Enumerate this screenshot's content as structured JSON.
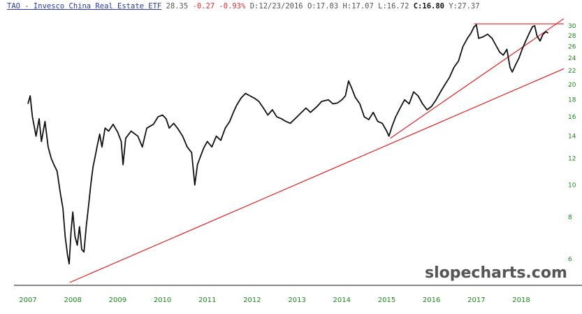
{
  "header": {
    "title": "TAO - Invesco China Real Estate ETF",
    "price": "28.35",
    "change": "-0.27",
    "change_pct": "-0.93%",
    "date_label": "D:",
    "date": "12/23/2016",
    "open_label": "O:",
    "open": "17.03",
    "high_label": "H:",
    "high": "17.07",
    "low_label": "L:",
    "low": "16.72",
    "close_label": "C:",
    "close": "16.80",
    "y_label": "Y:",
    "y_value": "27.37"
  },
  "watermark": "slopecharts.com",
  "colors": {
    "price_line": "#111111",
    "trendline": "#e02020",
    "axis_text": "#1a8a1a",
    "title": "#2a3aa8",
    "negative": "#e03030"
  },
  "chart_data": {
    "type": "line",
    "scale": "log",
    "ylim": [
      5.1,
      31
    ],
    "yticks": [
      6,
      8,
      10,
      12,
      14,
      16,
      18,
      20,
      22,
      24,
      26,
      28,
      30
    ],
    "xlim": [
      2007.0,
      2018.95
    ],
    "xticks": [
      "2007",
      "2008",
      "2009",
      "2010",
      "2011",
      "2012",
      "2013",
      "2014",
      "2015",
      "2016",
      "2017",
      "2018"
    ],
    "grid": false,
    "series": [
      {
        "values": [
          [
            2007.0,
            17.5
          ],
          [
            2007.05,
            18.5
          ],
          [
            2007.1,
            16.0
          ],
          [
            2007.18,
            14.0
          ],
          [
            2007.25,
            15.8
          ],
          [
            2007.3,
            13.5
          ],
          [
            2007.38,
            15.5
          ],
          [
            2007.45,
            13.0
          ],
          [
            2007.52,
            12.0
          ],
          [
            2007.58,
            11.5
          ],
          [
            2007.65,
            11.0
          ],
          [
            2007.72,
            9.5
          ],
          [
            2007.78,
            8.5
          ],
          [
            2007.83,
            7.0
          ],
          [
            2007.88,
            6.2
          ],
          [
            2007.92,
            5.8
          ],
          [
            2007.96,
            7.2
          ],
          [
            2008.0,
            8.3
          ],
          [
            2008.05,
            7.0
          ],
          [
            2008.1,
            6.6
          ],
          [
            2008.15,
            7.5
          ],
          [
            2008.2,
            6.4
          ],
          [
            2008.25,
            6.3
          ],
          [
            2008.3,
            7.5
          ],
          [
            2008.35,
            8.6
          ],
          [
            2008.4,
            10.0
          ],
          [
            2008.45,
            11.3
          ],
          [
            2008.5,
            12.2
          ],
          [
            2008.55,
            13.2
          ],
          [
            2008.6,
            14.2
          ],
          [
            2008.65,
            13.0
          ],
          [
            2008.72,
            14.8
          ],
          [
            2008.8,
            14.5
          ],
          [
            2008.9,
            15.2
          ],
          [
            2009.0,
            14.4
          ],
          [
            2009.08,
            13.5
          ],
          [
            2009.12,
            11.5
          ],
          [
            2009.18,
            13.8
          ],
          [
            2009.3,
            14.5
          ],
          [
            2009.45,
            14.0
          ],
          [
            2009.55,
            13.0
          ],
          [
            2009.65,
            14.8
          ],
          [
            2009.8,
            15.2
          ],
          [
            2009.9,
            16.0
          ],
          [
            2010.0,
            16.2
          ],
          [
            2010.08,
            15.8
          ],
          [
            2010.15,
            14.8
          ],
          [
            2010.25,
            15.3
          ],
          [
            2010.35,
            14.7
          ],
          [
            2010.45,
            14.0
          ],
          [
            2010.55,
            13.0
          ],
          [
            2010.65,
            12.5
          ],
          [
            2010.72,
            10.0
          ],
          [
            2010.78,
            11.5
          ],
          [
            2010.85,
            12.2
          ],
          [
            2010.92,
            12.9
          ],
          [
            2011.0,
            13.5
          ],
          [
            2011.1,
            13.0
          ],
          [
            2011.2,
            14.0
          ],
          [
            2011.3,
            13.6
          ],
          [
            2011.4,
            14.8
          ],
          [
            2011.5,
            15.5
          ],
          [
            2011.58,
            16.5
          ],
          [
            2011.65,
            17.3
          ],
          [
            2011.75,
            18.2
          ],
          [
            2011.85,
            18.8
          ],
          [
            2011.95,
            18.5
          ],
          [
            2012.05,
            18.2
          ],
          [
            2012.15,
            17.8
          ],
          [
            2012.25,
            17.0
          ],
          [
            2012.35,
            16.2
          ],
          [
            2012.45,
            16.8
          ],
          [
            2012.55,
            16.0
          ],
          [
            2012.65,
            15.8
          ],
          [
            2012.75,
            15.5
          ],
          [
            2012.85,
            15.3
          ],
          [
            2013.0,
            16.0
          ],
          [
            2013.1,
            16.5
          ],
          [
            2013.2,
            17.0
          ],
          [
            2013.3,
            16.5
          ],
          [
            2013.45,
            17.2
          ],
          [
            2013.55,
            17.8
          ],
          [
            2013.7,
            18.0
          ],
          [
            2013.8,
            17.5
          ],
          [
            2013.9,
            17.6
          ],
          [
            2014.0,
            18.0
          ],
          [
            2014.08,
            18.5
          ],
          [
            2014.15,
            20.5
          ],
          [
            2014.22,
            19.5
          ],
          [
            2014.3,
            18.3
          ],
          [
            2014.4,
            17.5
          ],
          [
            2014.5,
            16.0
          ],
          [
            2014.6,
            15.7
          ],
          [
            2014.7,
            16.5
          ],
          [
            2014.8,
            15.5
          ],
          [
            2014.9,
            15.3
          ],
          [
            2015.0,
            14.5
          ],
          [
            2015.05,
            14.0
          ],
          [
            2015.12,
            15.0
          ],
          [
            2015.2,
            16.0
          ],
          [
            2015.3,
            17.0
          ],
          [
            2015.4,
            18.0
          ],
          [
            2015.5,
            17.5
          ],
          [
            2015.6,
            19.0
          ],
          [
            2015.7,
            18.5
          ],
          [
            2015.8,
            17.5
          ],
          [
            2015.9,
            16.8
          ],
          [
            2016.0,
            17.2
          ],
          [
            2016.1,
            18.0
          ],
          [
            2016.2,
            19.0
          ],
          [
            2016.3,
            20.0
          ],
          [
            2016.4,
            21.0
          ],
          [
            2016.5,
            22.5
          ],
          [
            2016.6,
            23.5
          ],
          [
            2016.7,
            26.0
          ],
          [
            2016.8,
            27.5
          ],
          [
            2016.88,
            28.5
          ],
          [
            2016.95,
            29.8
          ],
          [
            2017.0,
            30.2
          ],
          [
            2017.05,
            27.5
          ],
          [
            2017.15,
            27.8
          ],
          [
            2017.25,
            28.3
          ],
          [
            2017.35,
            27.5
          ],
          [
            2017.45,
            26.0
          ],
          [
            2017.52,
            25.0
          ],
          [
            2017.6,
            24.5
          ],
          [
            2017.68,
            25.5
          ],
          [
            2017.75,
            22.5
          ],
          [
            2017.8,
            21.8
          ],
          [
            2017.88,
            23.0
          ],
          [
            2017.95,
            24.0
          ],
          [
            2018.02,
            25.5
          ],
          [
            2018.1,
            27.0
          ],
          [
            2018.18,
            28.5
          ],
          [
            2018.25,
            29.8
          ],
          [
            2018.3,
            30.0
          ],
          [
            2018.35,
            28.0
          ],
          [
            2018.42,
            27.0
          ],
          [
            2018.48,
            28.2
          ],
          [
            2018.55,
            28.8
          ],
          [
            2018.6,
            28.5
          ]
        ]
      }
    ],
    "trendlines": [
      {
        "from": [
          2007.93,
          5.1
        ],
        "to": [
          2018.95,
          22.3
        ]
      },
      {
        "from": [
          2015.08,
          13.8
        ],
        "to": [
          2018.95,
          31.5
        ]
      },
      {
        "from": [
          2016.95,
          30.4
        ],
        "to": [
          2018.95,
          30.4
        ]
      }
    ]
  }
}
